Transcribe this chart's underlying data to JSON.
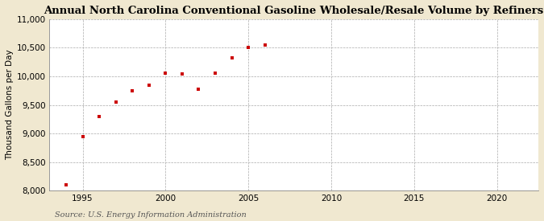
{
  "title": "Annual North Carolina Conventional Gasoline Wholesale/Resale Volume by Refiners",
  "ylabel": "Thousand Gallons per Day",
  "source": "Source: U.S. Energy Information Administration",
  "fig_background_color": "#f0e8d0",
  "plot_background_color": "#ffffff",
  "marker_color": "#cc0000",
  "years": [
    1994,
    1995,
    1996,
    1997,
    1998,
    1999,
    2000,
    2001,
    2002,
    2003,
    2004,
    2005,
    2006
  ],
  "values": [
    8100,
    8950,
    9300,
    9550,
    9750,
    9850,
    10050,
    10040,
    9780,
    10050,
    10330,
    10500,
    10550
  ],
  "xlim": [
    1993.0,
    2022.5
  ],
  "ylim": [
    8000,
    11000
  ],
  "yticks": [
    8000,
    8500,
    9000,
    9500,
    10000,
    10500,
    11000
  ],
  "xticks": [
    1995,
    2000,
    2005,
    2010,
    2015,
    2020
  ],
  "title_fontsize": 9.5,
  "label_fontsize": 7.5,
  "tick_fontsize": 7.5,
  "source_fontsize": 7.0,
  "grid_color": "#aaaaaa",
  "grid_linestyle": "--",
  "grid_linewidth": 0.5
}
